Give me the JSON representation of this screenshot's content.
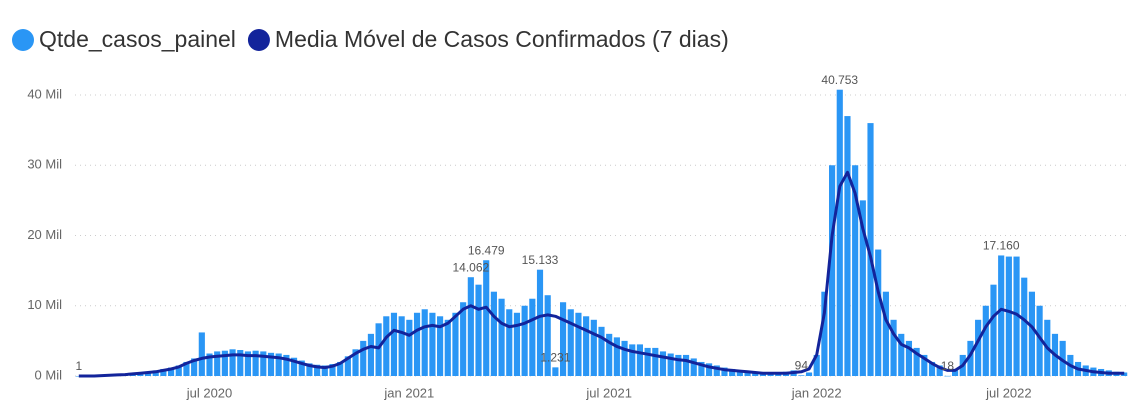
{
  "chart_data": {
    "type": "bar-line",
    "categories": [
      null,
      null,
      null,
      null,
      null,
      null,
      null,
      null,
      null,
      null,
      null,
      null,
      null,
      null,
      null,
      null,
      null,
      "jul 2020",
      null,
      null,
      null,
      null,
      null,
      null,
      null,
      null,
      null,
      null,
      null,
      null,
      null,
      null,
      null,
      null,
      null,
      null,
      null,
      null,
      null,
      null,
      null,
      null,
      null,
      "jan 2021",
      null,
      null,
      null,
      null,
      null,
      null,
      null,
      null,
      null,
      null,
      null,
      null,
      null,
      null,
      null,
      null,
      null,
      null,
      null,
      null,
      null,
      null,
      null,
      null,
      null,
      "jul 2021",
      null,
      null,
      null,
      null,
      null,
      null,
      null,
      null,
      null,
      null,
      null,
      null,
      null,
      null,
      null,
      null,
      null,
      null,
      null,
      null,
      null,
      null,
      null,
      null,
      null,
      null,
      "jan 2022",
      null,
      null,
      null,
      null,
      null,
      null,
      null,
      null,
      null,
      null,
      null,
      null,
      null,
      null,
      null,
      null,
      null,
      null,
      null,
      null,
      null,
      null,
      null,
      null,
      "jul 2022",
      null,
      null,
      null,
      null,
      null,
      null,
      null,
      null,
      null,
      null,
      null,
      null,
      null,
      null,
      null
    ],
    "series": [
      {
        "name": "Qtde_casos_painel",
        "color": "#2a96f5",
        "kind": "bar",
        "values": [
          1,
          10,
          50,
          100,
          150,
          200,
          300,
          400,
          500,
          600,
          800,
          1000,
          1200,
          1500,
          2000,
          2500,
          6200,
          3200,
          3500,
          3600,
          3800,
          3700,
          3500,
          3600,
          3500,
          3300,
          3200,
          3000,
          2600,
          2200,
          1800,
          1600,
          1500,
          1700,
          2000,
          2800,
          3800,
          5000,
          6000,
          7500,
          8500,
          9000,
          8500,
          8000,
          9000,
          9500,
          9000,
          8500,
          8000,
          9000,
          10500,
          14062,
          13000,
          16479,
          12000,
          11000,
          9500,
          9000,
          10000,
          11000,
          15133,
          11500,
          1231,
          10500,
          9500,
          9000,
          8500,
          8000,
          7000,
          6000,
          5500,
          5000,
          4500,
          4500,
          4000,
          4000,
          3500,
          3200,
          3000,
          3000,
          2500,
          2000,
          1800,
          1500,
          1200,
          1000,
          800,
          700,
          600,
          500,
          500,
          500,
          600,
          800,
          94,
          500,
          3000,
          12000,
          30000,
          40753,
          37000,
          30000,
          25000,
          36000,
          18000,
          12000,
          8000,
          6000,
          5000,
          4000,
          3000,
          2000,
          1500,
          18,
          800,
          3000,
          5000,
          8000,
          10000,
          13000,
          17160,
          17000,
          17000,
          14000,
          12000,
          10000,
          8000,
          6000,
          5000,
          3000,
          2000,
          1500,
          1200,
          1000,
          800,
          600,
          500
        ],
        "value_labels": [
          "1",
          null,
          null,
          null,
          null,
          null,
          null,
          null,
          null,
          null,
          null,
          null,
          null,
          null,
          null,
          null,
          null,
          null,
          null,
          null,
          null,
          null,
          null,
          null,
          null,
          null,
          null,
          null,
          null,
          null,
          null,
          null,
          null,
          null,
          null,
          null,
          null,
          null,
          null,
          null,
          null,
          null,
          null,
          null,
          null,
          null,
          null,
          null,
          null,
          null,
          null,
          "14.062",
          null,
          "16.479",
          null,
          null,
          null,
          null,
          null,
          null,
          "15.133",
          null,
          "1.231",
          null,
          null,
          null,
          null,
          null,
          null,
          null,
          null,
          null,
          null,
          null,
          null,
          null,
          null,
          null,
          null,
          null,
          null,
          null,
          null,
          null,
          null,
          null,
          null,
          null,
          null,
          null,
          null,
          null,
          null,
          null,
          "94",
          null,
          null,
          null,
          null,
          "40.753",
          null,
          null,
          null,
          null,
          null,
          null,
          null,
          null,
          null,
          null,
          null,
          null,
          null,
          "18",
          null,
          null,
          null,
          null,
          null,
          null,
          "17.160",
          null,
          null,
          null,
          null,
          null,
          null,
          null,
          null,
          null,
          null,
          null,
          null,
          null,
          null,
          null,
          null
        ]
      },
      {
        "name": "Media Móvel de Casos Confirmados (7 dias)",
        "color": "#13249b",
        "kind": "line",
        "values": [
          0,
          0,
          0,
          50,
          100,
          150,
          200,
          300,
          400,
          500,
          600,
          800,
          1000,
          1300,
          1800,
          2200,
          2500,
          2700,
          2800,
          2900,
          3000,
          3000,
          2900,
          2900,
          2800,
          2700,
          2600,
          2400,
          2100,
          1800,
          1500,
          1300,
          1200,
          1400,
          1800,
          2500,
          3200,
          3800,
          4200,
          4000,
          5500,
          6500,
          6200,
          5800,
          6500,
          7000,
          7200,
          7000,
          7500,
          8500,
          9500,
          10000,
          9500,
          9800,
          8500,
          7500,
          7000,
          7200,
          7500,
          8000,
          8500,
          8700,
          8500,
          8000,
          7500,
          7000,
          6500,
          6000,
          5500,
          4800,
          4200,
          3800,
          3500,
          3300,
          3100,
          2900,
          2700,
          2500,
          2300,
          2200,
          1900,
          1600,
          1300,
          1100,
          900,
          800,
          700,
          600,
          500,
          400,
          400,
          400,
          400,
          500,
          600,
          1000,
          3000,
          9000,
          20000,
          27000,
          29000,
          26000,
          21000,
          17000,
          12000,
          8000,
          6000,
          4500,
          4000,
          3200,
          2500,
          1800,
          1200,
          800,
          800,
          1500,
          3000,
          5000,
          7000,
          8500,
          9500,
          9200,
          8800,
          8000,
          7000,
          5500,
          4000,
          3000,
          2200,
          1500,
          1000,
          800,
          600,
          500,
          400,
          400,
          400
        ]
      }
    ],
    "ylim": [
      0,
      40000
    ],
    "yticks": [
      {
        "value": 0,
        "label": "0 Mil"
      },
      {
        "value": 10000,
        "label": "10 Mil"
      },
      {
        "value": 20000,
        "label": "20 Mil"
      },
      {
        "value": 30000,
        "label": "30 Mil"
      },
      {
        "value": 40000,
        "label": "40 Mil"
      }
    ],
    "grid": true
  }
}
